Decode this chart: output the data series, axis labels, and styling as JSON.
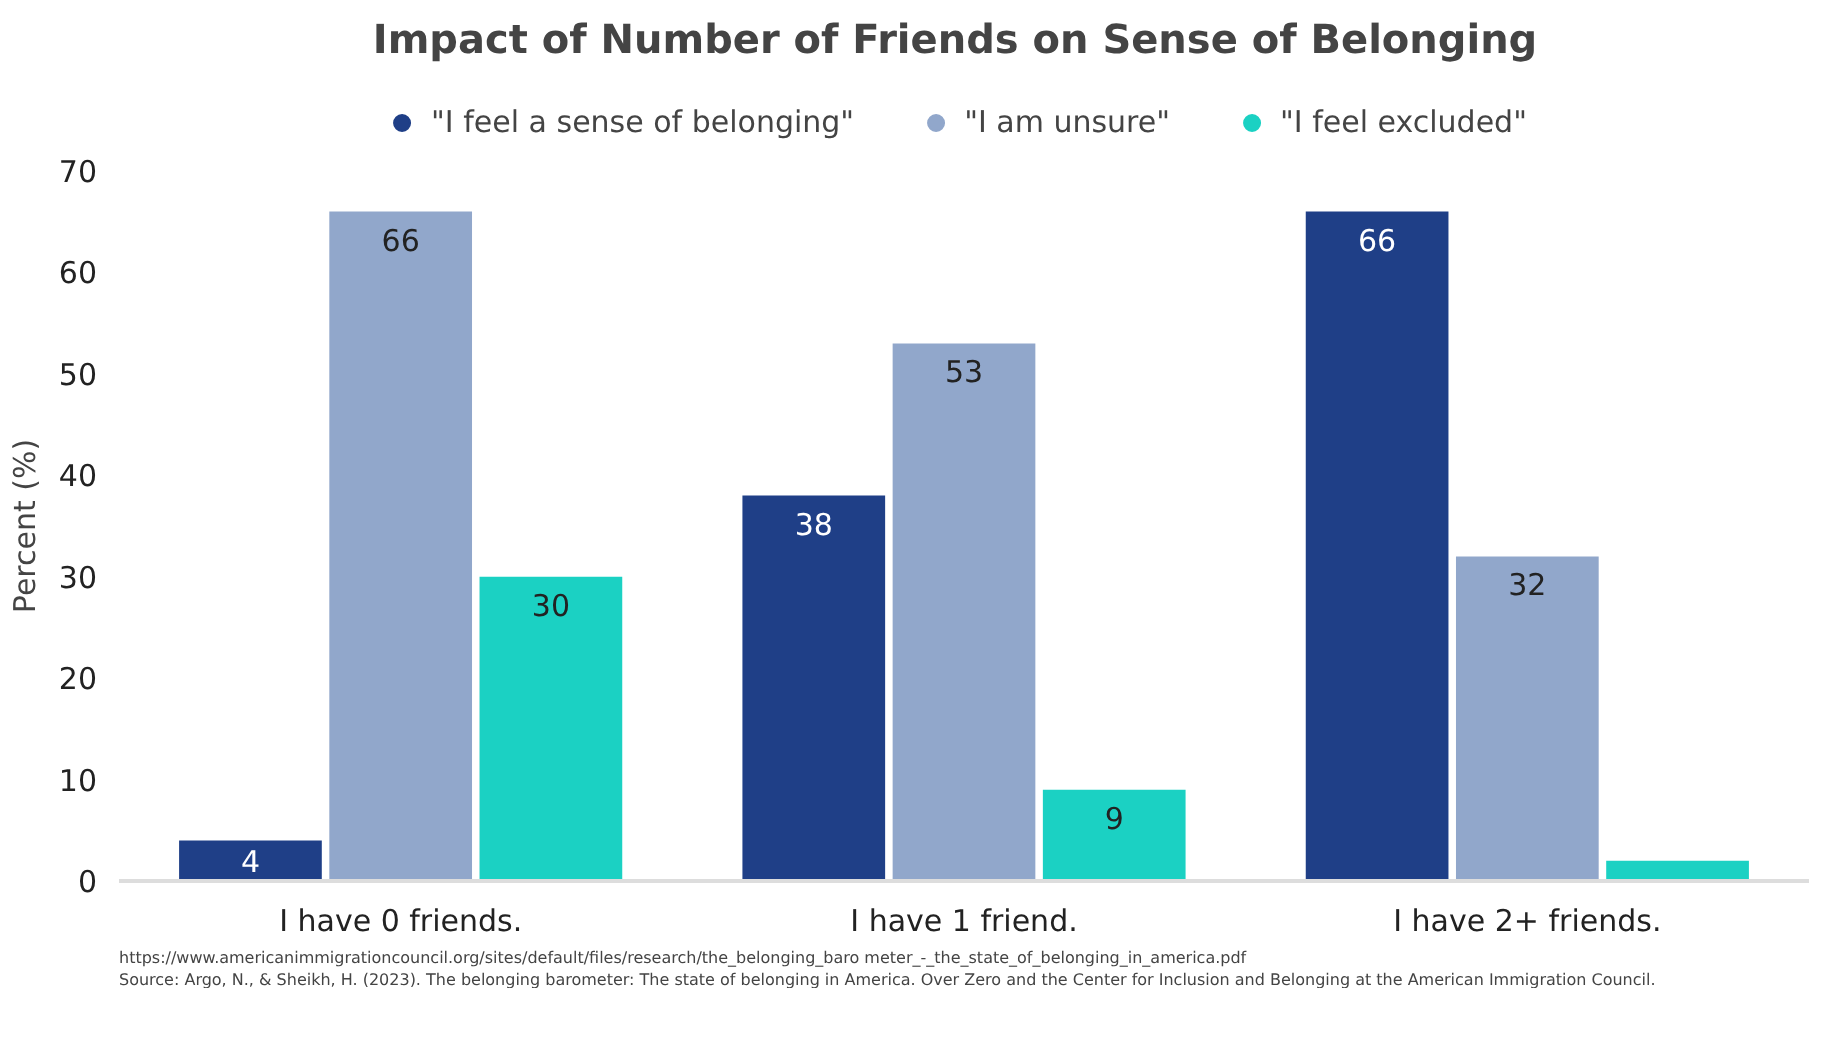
{
  "chart_data": {
    "type": "bar",
    "title": "Impact of Number of Friends on Sense of Belonging",
    "ylabel": "Percent (%)",
    "categories": [
      "I have 0 friends.",
      "I have 1 friend.",
      "I have 2+ friends."
    ],
    "series": [
      {
        "name": "\"I feel a sense of belonging\"",
        "color": "#1f3f87",
        "values": [
          4,
          38,
          66
        ],
        "value_labels": [
          "4",
          "38",
          "66"
        ]
      },
      {
        "name": "\"I am unsure\"",
        "color": "#91a7cb",
        "values": [
          66,
          53,
          32
        ],
        "value_labels": [
          "66",
          "53",
          "32"
        ]
      },
      {
        "name": "\"I feel excluded\"",
        "color": "#1bd1c3",
        "values": [
          30,
          9,
          2
        ],
        "value_labels": [
          "30",
          "9",
          null
        ]
      }
    ],
    "ylim": [
      0,
      70
    ],
    "yticks": [
      0,
      10,
      20,
      30,
      40,
      50,
      60,
      70
    ],
    "grid": false,
    "legend": "top",
    "marker": "circle",
    "annotations": [
      "Source: Argo, N., & Sheikh, H. (2023). The belonging barometer: The state of belonging in America. Over Zero and the Center for Inclusion and Belonging at the American Immigration Council.",
      "https://www.americanimmigrationcouncil.org/sites/default/files/research/the_belonging_baro meter_-_the_state_of_belonging_in_america.pdf"
    ]
  }
}
